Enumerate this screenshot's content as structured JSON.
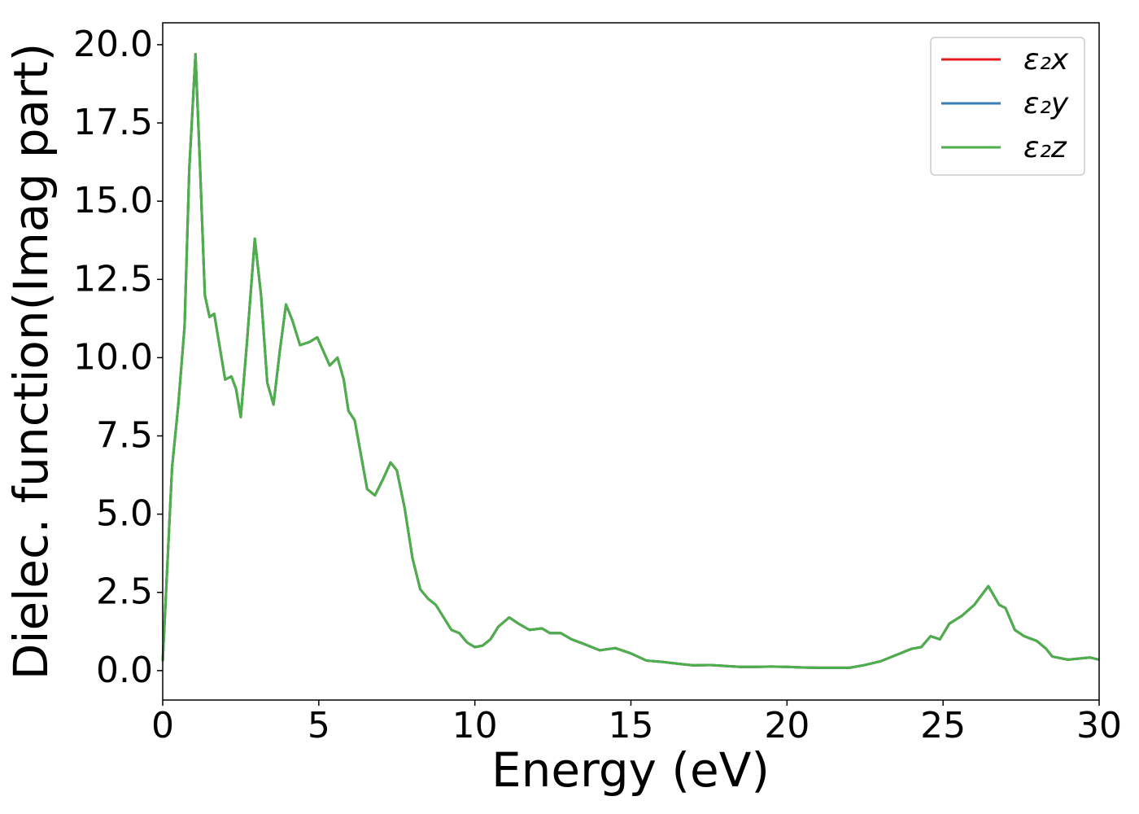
{
  "chart_data": {
    "type": "line",
    "xlabel": "Energy (eV)",
    "ylabel": "Dielec. function(Imag part)",
    "x": [
      0,
      0.3,
      0.5,
      0.7,
      0.85,
      1.05,
      1.2,
      1.35,
      1.5,
      1.65,
      1.8,
      2.0,
      2.2,
      2.35,
      2.5,
      2.7,
      2.95,
      3.15,
      3.35,
      3.55,
      3.75,
      3.95,
      4.15,
      4.4,
      4.7,
      4.95,
      5.15,
      5.35,
      5.6,
      5.8,
      5.95,
      6.15,
      6.35,
      6.55,
      6.8,
      7.05,
      7.3,
      7.5,
      7.75,
      8.0,
      8.25,
      8.5,
      8.75,
      9.0,
      9.25,
      9.5,
      9.75,
      10.0,
      10.25,
      10.5,
      10.75,
      11.1,
      11.4,
      11.75,
      12.15,
      12.4,
      12.75,
      13.1,
      13.5,
      14.0,
      14.5,
      15.0,
      15.5,
      16.0,
      16.5,
      17.0,
      17.5,
      18.0,
      18.5,
      19.0,
      19.5,
      20.0,
      20.5,
      21.0,
      21.5,
      22.0,
      22.5,
      23.0,
      23.5,
      24.0,
      24.3,
      24.6,
      24.9,
      25.2,
      25.6,
      26.0,
      26.45,
      26.8,
      27.0,
      27.3,
      27.6,
      28.0,
      28.3,
      28.5,
      29.0,
      29.5,
      29.7,
      30.0
    ],
    "series": [
      {
        "name": "ε₂x",
        "color": "#e41a1c",
        "values": [
          0.3,
          6.5,
          8.5,
          11,
          16,
          19.7,
          16,
          12,
          11.3,
          11.4,
          10.5,
          9.3,
          9.4,
          9.0,
          8.1,
          10.5,
          13.8,
          12,
          9.2,
          8.5,
          10.2,
          11.7,
          11.2,
          10.4,
          10.5,
          10.65,
          10.2,
          9.75,
          10.0,
          9.3,
          8.3,
          8.0,
          6.9,
          5.8,
          5.6,
          6.1,
          6.65,
          6.4,
          5.2,
          3.6,
          2.6,
          2.3,
          2.1,
          1.7,
          1.3,
          1.2,
          0.9,
          0.75,
          0.8,
          1.0,
          1.4,
          1.7,
          1.5,
          1.3,
          1.35,
          1.2,
          1.2,
          1.0,
          0.85,
          0.65,
          0.72,
          0.55,
          0.32,
          0.28,
          0.22,
          0.17,
          0.18,
          0.15,
          0.12,
          0.12,
          0.13,
          0.12,
          0.1,
          0.09,
          0.09,
          0.09,
          0.18,
          0.3,
          0.5,
          0.7,
          0.75,
          1.1,
          1.0,
          1.5,
          1.75,
          2.1,
          2.7,
          2.1,
          2.0,
          1.3,
          1.1,
          0.95,
          0.7,
          0.45,
          0.35,
          0.4,
          0.42,
          0.35
        ]
      },
      {
        "name": "ε₂y",
        "color": "#377eb8",
        "values": [
          0.3,
          6.5,
          8.5,
          11,
          16,
          19.7,
          16,
          12,
          11.3,
          11.4,
          10.5,
          9.3,
          9.4,
          9.0,
          8.1,
          10.5,
          13.8,
          12,
          9.2,
          8.5,
          10.2,
          11.7,
          11.2,
          10.4,
          10.5,
          10.65,
          10.2,
          9.75,
          10.0,
          9.3,
          8.3,
          8.0,
          6.9,
          5.8,
          5.6,
          6.1,
          6.65,
          6.4,
          5.2,
          3.6,
          2.6,
          2.3,
          2.1,
          1.7,
          1.3,
          1.2,
          0.9,
          0.75,
          0.8,
          1.0,
          1.4,
          1.7,
          1.5,
          1.3,
          1.35,
          1.2,
          1.2,
          1.0,
          0.85,
          0.65,
          0.72,
          0.55,
          0.32,
          0.28,
          0.22,
          0.17,
          0.18,
          0.15,
          0.12,
          0.12,
          0.13,
          0.12,
          0.1,
          0.09,
          0.09,
          0.09,
          0.18,
          0.3,
          0.5,
          0.7,
          0.75,
          1.1,
          1.0,
          1.5,
          1.75,
          2.1,
          2.7,
          2.1,
          2.0,
          1.3,
          1.1,
          0.95,
          0.7,
          0.45,
          0.35,
          0.4,
          0.42,
          0.35
        ]
      },
      {
        "name": "ε₂z",
        "color": "#4daf4a",
        "values": [
          0.3,
          6.5,
          8.5,
          11,
          16,
          19.7,
          16,
          12,
          11.3,
          11.4,
          10.5,
          9.3,
          9.4,
          9.0,
          8.1,
          10.5,
          13.8,
          12,
          9.2,
          8.5,
          10.2,
          11.7,
          11.2,
          10.4,
          10.5,
          10.65,
          10.2,
          9.75,
          10.0,
          9.3,
          8.3,
          8.0,
          6.9,
          5.8,
          5.6,
          6.1,
          6.65,
          6.4,
          5.2,
          3.6,
          2.6,
          2.3,
          2.1,
          1.7,
          1.3,
          1.2,
          0.9,
          0.75,
          0.8,
          1.0,
          1.4,
          1.7,
          1.5,
          1.3,
          1.35,
          1.2,
          1.2,
          1.0,
          0.85,
          0.65,
          0.72,
          0.55,
          0.32,
          0.28,
          0.22,
          0.17,
          0.18,
          0.15,
          0.12,
          0.12,
          0.13,
          0.12,
          0.1,
          0.09,
          0.09,
          0.09,
          0.18,
          0.3,
          0.5,
          0.7,
          0.75,
          1.1,
          1.0,
          1.5,
          1.75,
          2.1,
          2.7,
          2.1,
          2.0,
          1.3,
          1.1,
          0.95,
          0.7,
          0.45,
          0.35,
          0.4,
          0.42,
          0.35
        ]
      }
    ],
    "xlim": [
      0,
      30
    ],
    "xticks": [
      0,
      5,
      10,
      15,
      20,
      25,
      30
    ],
    "ylim": [
      -0.94,
      20.7
    ],
    "yticks": [
      {
        "value": 0,
        "label": "0.0"
      },
      2.5,
      {
        "value": 5,
        "label": "5.0"
      },
      7.5,
      {
        "value": 10,
        "label": "10.0"
      },
      12.5,
      {
        "value": 15,
        "label": "15.0"
      },
      17.5,
      {
        "value": 20,
        "label": "20.0"
      }
    ],
    "grid": false,
    "legend": "upper right"
  }
}
